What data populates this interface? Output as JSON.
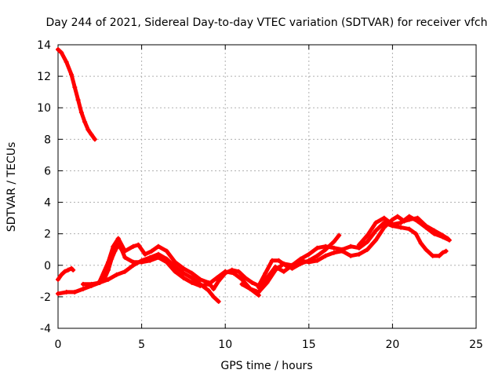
{
  "chart_data": {
    "type": "scatter",
    "title": "Day 244 of 2021, Sidereal Day-to-day VTEC variation (SDTVAR) for receiver vfch",
    "xlabel": "GPS time / hours",
    "ylabel": "SDTVAR / TECUs",
    "xlim": [
      0,
      25
    ],
    "ylim": [
      -4,
      14
    ],
    "xticks": [
      0,
      5,
      10,
      15,
      20,
      25
    ],
    "yticks": [
      -4,
      -2,
      0,
      2,
      4,
      6,
      8,
      10,
      12,
      14
    ],
    "xtick_labels": [
      "0",
      "5",
      "10",
      "15",
      "20",
      "25"
    ],
    "ytick_labels": [
      "-4",
      "-2",
      "0",
      "2",
      "4",
      "6",
      "8",
      "10",
      "12",
      "14"
    ],
    "grid": true,
    "color": "#ff0000",
    "series": [
      {
        "name": "s1",
        "points": [
          [
            0.0,
            13.7
          ],
          [
            0.2,
            13.5
          ],
          [
            0.5,
            12.9
          ],
          [
            0.8,
            12.1
          ],
          [
            1.0,
            11.3
          ],
          [
            1.2,
            10.5
          ],
          [
            1.4,
            9.7
          ],
          [
            1.6,
            9.1
          ],
          [
            1.8,
            8.6
          ],
          [
            2.0,
            8.3
          ],
          [
            2.2,
            8.0
          ]
        ]
      },
      {
        "name": "s2",
        "points": [
          [
            0.0,
            -0.9
          ],
          [
            0.2,
            -0.6
          ],
          [
            0.4,
            -0.4
          ],
          [
            0.6,
            -0.3
          ],
          [
            0.8,
            -0.2
          ],
          [
            0.9,
            -0.3
          ]
        ]
      },
      {
        "name": "s3",
        "points": [
          [
            0.0,
            -1.8
          ],
          [
            0.5,
            -1.7
          ],
          [
            1.0,
            -1.7
          ],
          [
            1.5,
            -1.5
          ],
          [
            2.0,
            -1.3
          ],
          [
            2.5,
            -1.1
          ],
          [
            3.0,
            -0.9
          ],
          [
            3.5,
            -0.6
          ],
          [
            4.0,
            -0.4
          ],
          [
            4.5,
            0.0
          ],
          [
            5.0,
            0.3
          ],
          [
            5.5,
            0.5
          ],
          [
            6.0,
            0.7
          ],
          [
            6.5,
            0.4
          ],
          [
            7.0,
            -0.1
          ],
          [
            7.5,
            -0.5
          ],
          [
            8.0,
            -0.8
          ],
          [
            8.5,
            -1.2
          ],
          [
            9.0,
            -1.6
          ],
          [
            9.3,
            -2.0
          ],
          [
            9.6,
            -2.3
          ]
        ]
      },
      {
        "name": "s4",
        "points": [
          [
            1.5,
            -1.2
          ],
          [
            2.0,
            -1.2
          ],
          [
            2.5,
            -1.1
          ],
          [
            2.8,
            -0.8
          ],
          [
            3.0,
            -0.3
          ],
          [
            3.2,
            0.4
          ],
          [
            3.4,
            0.9
          ],
          [
            3.6,
            1.3
          ],
          [
            3.8,
            1.0
          ],
          [
            4.0,
            0.5
          ],
          [
            4.5,
            0.2
          ],
          [
            5.0,
            0.2
          ],
          [
            5.5,
            0.3
          ],
          [
            6.0,
            0.5
          ],
          [
            6.5,
            0.2
          ],
          [
            7.0,
            -0.4
          ],
          [
            7.5,
            -0.8
          ],
          [
            8.0,
            -1.1
          ],
          [
            8.5,
            -1.3
          ],
          [
            9.0,
            -1.2
          ],
          [
            9.5,
            -0.8
          ],
          [
            10.0,
            -0.4
          ],
          [
            10.5,
            -0.5
          ],
          [
            11.0,
            -0.9
          ],
          [
            11.5,
            -1.5
          ],
          [
            12.0,
            -1.9
          ]
        ]
      },
      {
        "name": "s5",
        "points": [
          [
            2.5,
            -1.0
          ],
          [
            3.0,
            0.2
          ],
          [
            3.3,
            1.2
          ],
          [
            3.6,
            1.7
          ],
          [
            4.0,
            0.9
          ],
          [
            4.5,
            1.2
          ],
          [
            4.8,
            1.3
          ],
          [
            5.2,
            0.7
          ],
          [
            5.6,
            0.9
          ],
          [
            6.0,
            1.2
          ],
          [
            6.5,
            0.9
          ],
          [
            7.0,
            0.2
          ],
          [
            7.5,
            -0.2
          ],
          [
            8.0,
            -0.5
          ],
          [
            8.5,
            -0.9
          ],
          [
            9.0,
            -1.1
          ],
          [
            9.3,
            -1.5
          ],
          [
            9.6,
            -1.0
          ],
          [
            10.0,
            -0.5
          ],
          [
            10.4,
            -0.3
          ],
          [
            10.8,
            -0.4
          ],
          [
            11.2,
            -0.8
          ],
          [
            11.6,
            -1.1
          ],
          [
            12.0,
            -1.3
          ],
          [
            12.4,
            -0.5
          ],
          [
            12.8,
            0.3
          ],
          [
            13.2,
            0.3
          ],
          [
            13.6,
            0.0
          ],
          [
            14.0,
            -0.2
          ],
          [
            14.5,
            0.1
          ],
          [
            15.0,
            0.3
          ],
          [
            15.5,
            0.6
          ],
          [
            16.0,
            1.0
          ],
          [
            16.5,
            1.5
          ],
          [
            16.8,
            1.9
          ]
        ]
      },
      {
        "name": "s6",
        "points": [
          [
            11.0,
            -1.2
          ],
          [
            11.5,
            -1.5
          ],
          [
            12.0,
            -1.7
          ],
          [
            12.5,
            -1.1
          ],
          [
            13.0,
            -0.3
          ],
          [
            13.5,
            0.1
          ],
          [
            14.0,
            0.0
          ],
          [
            14.5,
            0.3
          ],
          [
            15.0,
            0.2
          ],
          [
            15.5,
            0.3
          ],
          [
            16.0,
            0.6
          ],
          [
            16.5,
            0.8
          ],
          [
            17.0,
            0.9
          ],
          [
            17.5,
            0.6
          ],
          [
            18.0,
            0.7
          ],
          [
            18.5,
            1.0
          ],
          [
            19.0,
            1.6
          ],
          [
            19.5,
            2.4
          ],
          [
            20.0,
            2.9
          ],
          [
            20.3,
            3.1
          ],
          [
            20.7,
            2.8
          ],
          [
            21.0,
            2.9
          ],
          [
            21.5,
            3.0
          ],
          [
            22.0,
            2.5
          ],
          [
            22.5,
            2.2
          ],
          [
            23.0,
            1.9
          ],
          [
            23.3,
            1.7
          ]
        ]
      },
      {
        "name": "s7",
        "points": [
          [
            12.0,
            -1.4
          ],
          [
            12.5,
            -0.8
          ],
          [
            13.0,
            -0.1
          ],
          [
            13.5,
            -0.4
          ],
          [
            14.0,
            0.0
          ],
          [
            14.5,
            0.4
          ],
          [
            15.0,
            0.7
          ],
          [
            15.5,
            1.1
          ],
          [
            16.0,
            1.2
          ],
          [
            16.5,
            1.1
          ],
          [
            17.0,
            1.0
          ],
          [
            17.5,
            1.2
          ],
          [
            18.0,
            1.1
          ],
          [
            18.5,
            1.5
          ],
          [
            19.0,
            2.2
          ],
          [
            19.5,
            2.7
          ],
          [
            20.0,
            2.5
          ],
          [
            20.5,
            2.4
          ],
          [
            21.0,
            2.3
          ],
          [
            21.4,
            2.0
          ],
          [
            21.7,
            1.4
          ],
          [
            22.0,
            1.0
          ],
          [
            22.4,
            0.6
          ],
          [
            22.8,
            0.6
          ],
          [
            23.0,
            0.8
          ],
          [
            23.2,
            0.9
          ]
        ]
      },
      {
        "name": "s8",
        "points": [
          [
            18.0,
            1.3
          ],
          [
            18.5,
            1.9
          ],
          [
            19.0,
            2.7
          ],
          [
            19.5,
            3.0
          ],
          [
            20.0,
            2.6
          ],
          [
            20.5,
            2.7
          ],
          [
            21.0,
            3.1
          ],
          [
            21.5,
            2.8
          ],
          [
            22.0,
            2.4
          ],
          [
            22.5,
            2.0
          ],
          [
            23.0,
            1.8
          ],
          [
            23.4,
            1.6
          ]
        ]
      }
    ]
  }
}
